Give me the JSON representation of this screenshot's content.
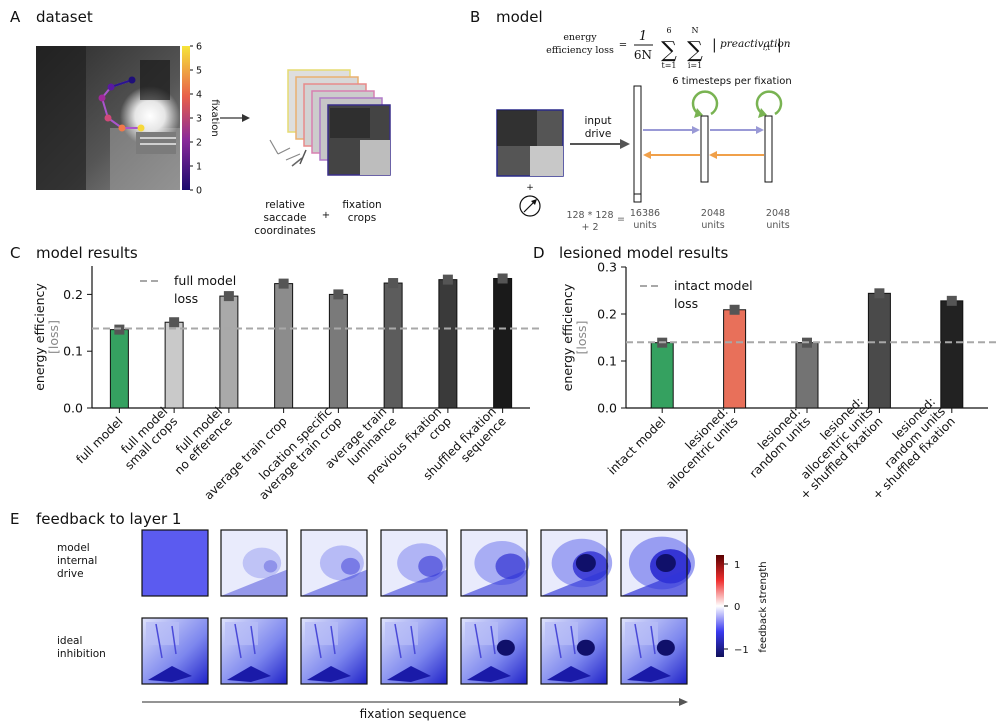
{
  "panels": {
    "a": {
      "letter": "A",
      "title": "dataset",
      "colorbar_label": "fixation",
      "colorbar_ticks": [
        "0",
        "1",
        "2",
        "3",
        "4",
        "5",
        "6"
      ],
      "label_saccade": [
        "relative",
        "saccade",
        "coordinates"
      ],
      "plus": "+",
      "label_crops": [
        "fixation",
        "crops"
      ]
    },
    "b": {
      "letter": "B",
      "title": "model",
      "formula_lhs": [
        "energy",
        "efficiency loss"
      ],
      "formula_eq": "=",
      "formula_frac_num": "1",
      "formula_frac_den": "6N",
      "sum1_top": "6",
      "sum1_bottom": "t=1",
      "sum2_top": "N",
      "sum2_bottom": "i=1",
      "formula_term": "preactivation",
      "formula_sub": "i,t",
      "timesteps_label": "6 timesteps per fixation",
      "input_label": [
        "input",
        "drive"
      ],
      "plus": "+",
      "input_units": [
        "128 * 128",
        "+ 2"
      ],
      "input_eq": "=",
      "layer_units": [
        [
          "16386",
          "units"
        ],
        [
          "2048",
          "units"
        ],
        [
          "2048",
          "units"
        ]
      ]
    },
    "c": {
      "letter": "C",
      "title": "model results",
      "legend_label": [
        "full model",
        "loss"
      ]
    },
    "d": {
      "letter": "D",
      "title": "lesioned model results",
      "legend_label": [
        "intact model",
        "loss"
      ]
    },
    "e": {
      "letter": "E",
      "title": "feedback to layer 1",
      "row_labels": [
        [
          "model",
          "internal",
          "drive"
        ],
        [
          "ideal",
          "inhibition"
        ]
      ],
      "colorbar_label": "feedback strength",
      "colorbar_ticks": [
        "1",
        "0",
        "−1"
      ],
      "x_axis_label": "fixation sequence"
    }
  },
  "chart_data": [
    {
      "type": "bar",
      "title": "model results",
      "ylabel": [
        "energy efficiency",
        "[loss]"
      ],
      "ylim": [
        0.0,
        0.25
      ],
      "yticks": [
        0.0,
        0.1,
        0.2
      ],
      "ytick_labels": [
        "0.0",
        "0.1",
        "0.2"
      ],
      "reference_line": {
        "value": 0.14,
        "label": "full model loss"
      },
      "categories": [
        [
          "full model"
        ],
        [
          "full model",
          "small crops"
        ],
        [
          "full model",
          "no efference"
        ],
        [
          "average train crop"
        ],
        [
          "location specific",
          "average train crop"
        ],
        [
          "average train",
          "luminance"
        ],
        [
          "previous fixation",
          "crop"
        ],
        [
          "shuffled fixation",
          "sequence"
        ]
      ],
      "values": [
        0.138,
        0.151,
        0.197,
        0.219,
        0.2,
        0.22,
        0.226,
        0.228
      ],
      "colors": [
        "#35a160",
        "#c9c9c9",
        "#a9a9a9",
        "#8c8c8c",
        "#7a7a7a",
        "#5c5c5c",
        "#3a3a3a",
        "#1a1a1a"
      ]
    },
    {
      "type": "bar",
      "title": "lesioned model results",
      "ylabel": [
        "energy efficiency",
        "[loss]"
      ],
      "ylim": [
        0.0,
        0.3
      ],
      "yticks": [
        0.0,
        0.1,
        0.2,
        0.3
      ],
      "ytick_labels": [
        "0.0",
        "0.1",
        "0.2",
        "0.3"
      ],
      "reference_line": {
        "value": 0.14,
        "label": "intact model loss"
      },
      "categories": [
        [
          "intact model"
        ],
        [
          "lesioned:",
          "allocentric units"
        ],
        [
          "lesioned:",
          "random units"
        ],
        [
          "lesioned:",
          "allocentric units",
          "+ shuffled fixation"
        ],
        [
          "lesioned:",
          "random units",
          "+ shuffled fixation"
        ]
      ],
      "values": [
        0.139,
        0.209,
        0.139,
        0.244,
        0.228
      ],
      "colors": [
        "#35a160",
        "#e8705a",
        "#737373",
        "#4a4a4a",
        "#222222"
      ]
    }
  ]
}
